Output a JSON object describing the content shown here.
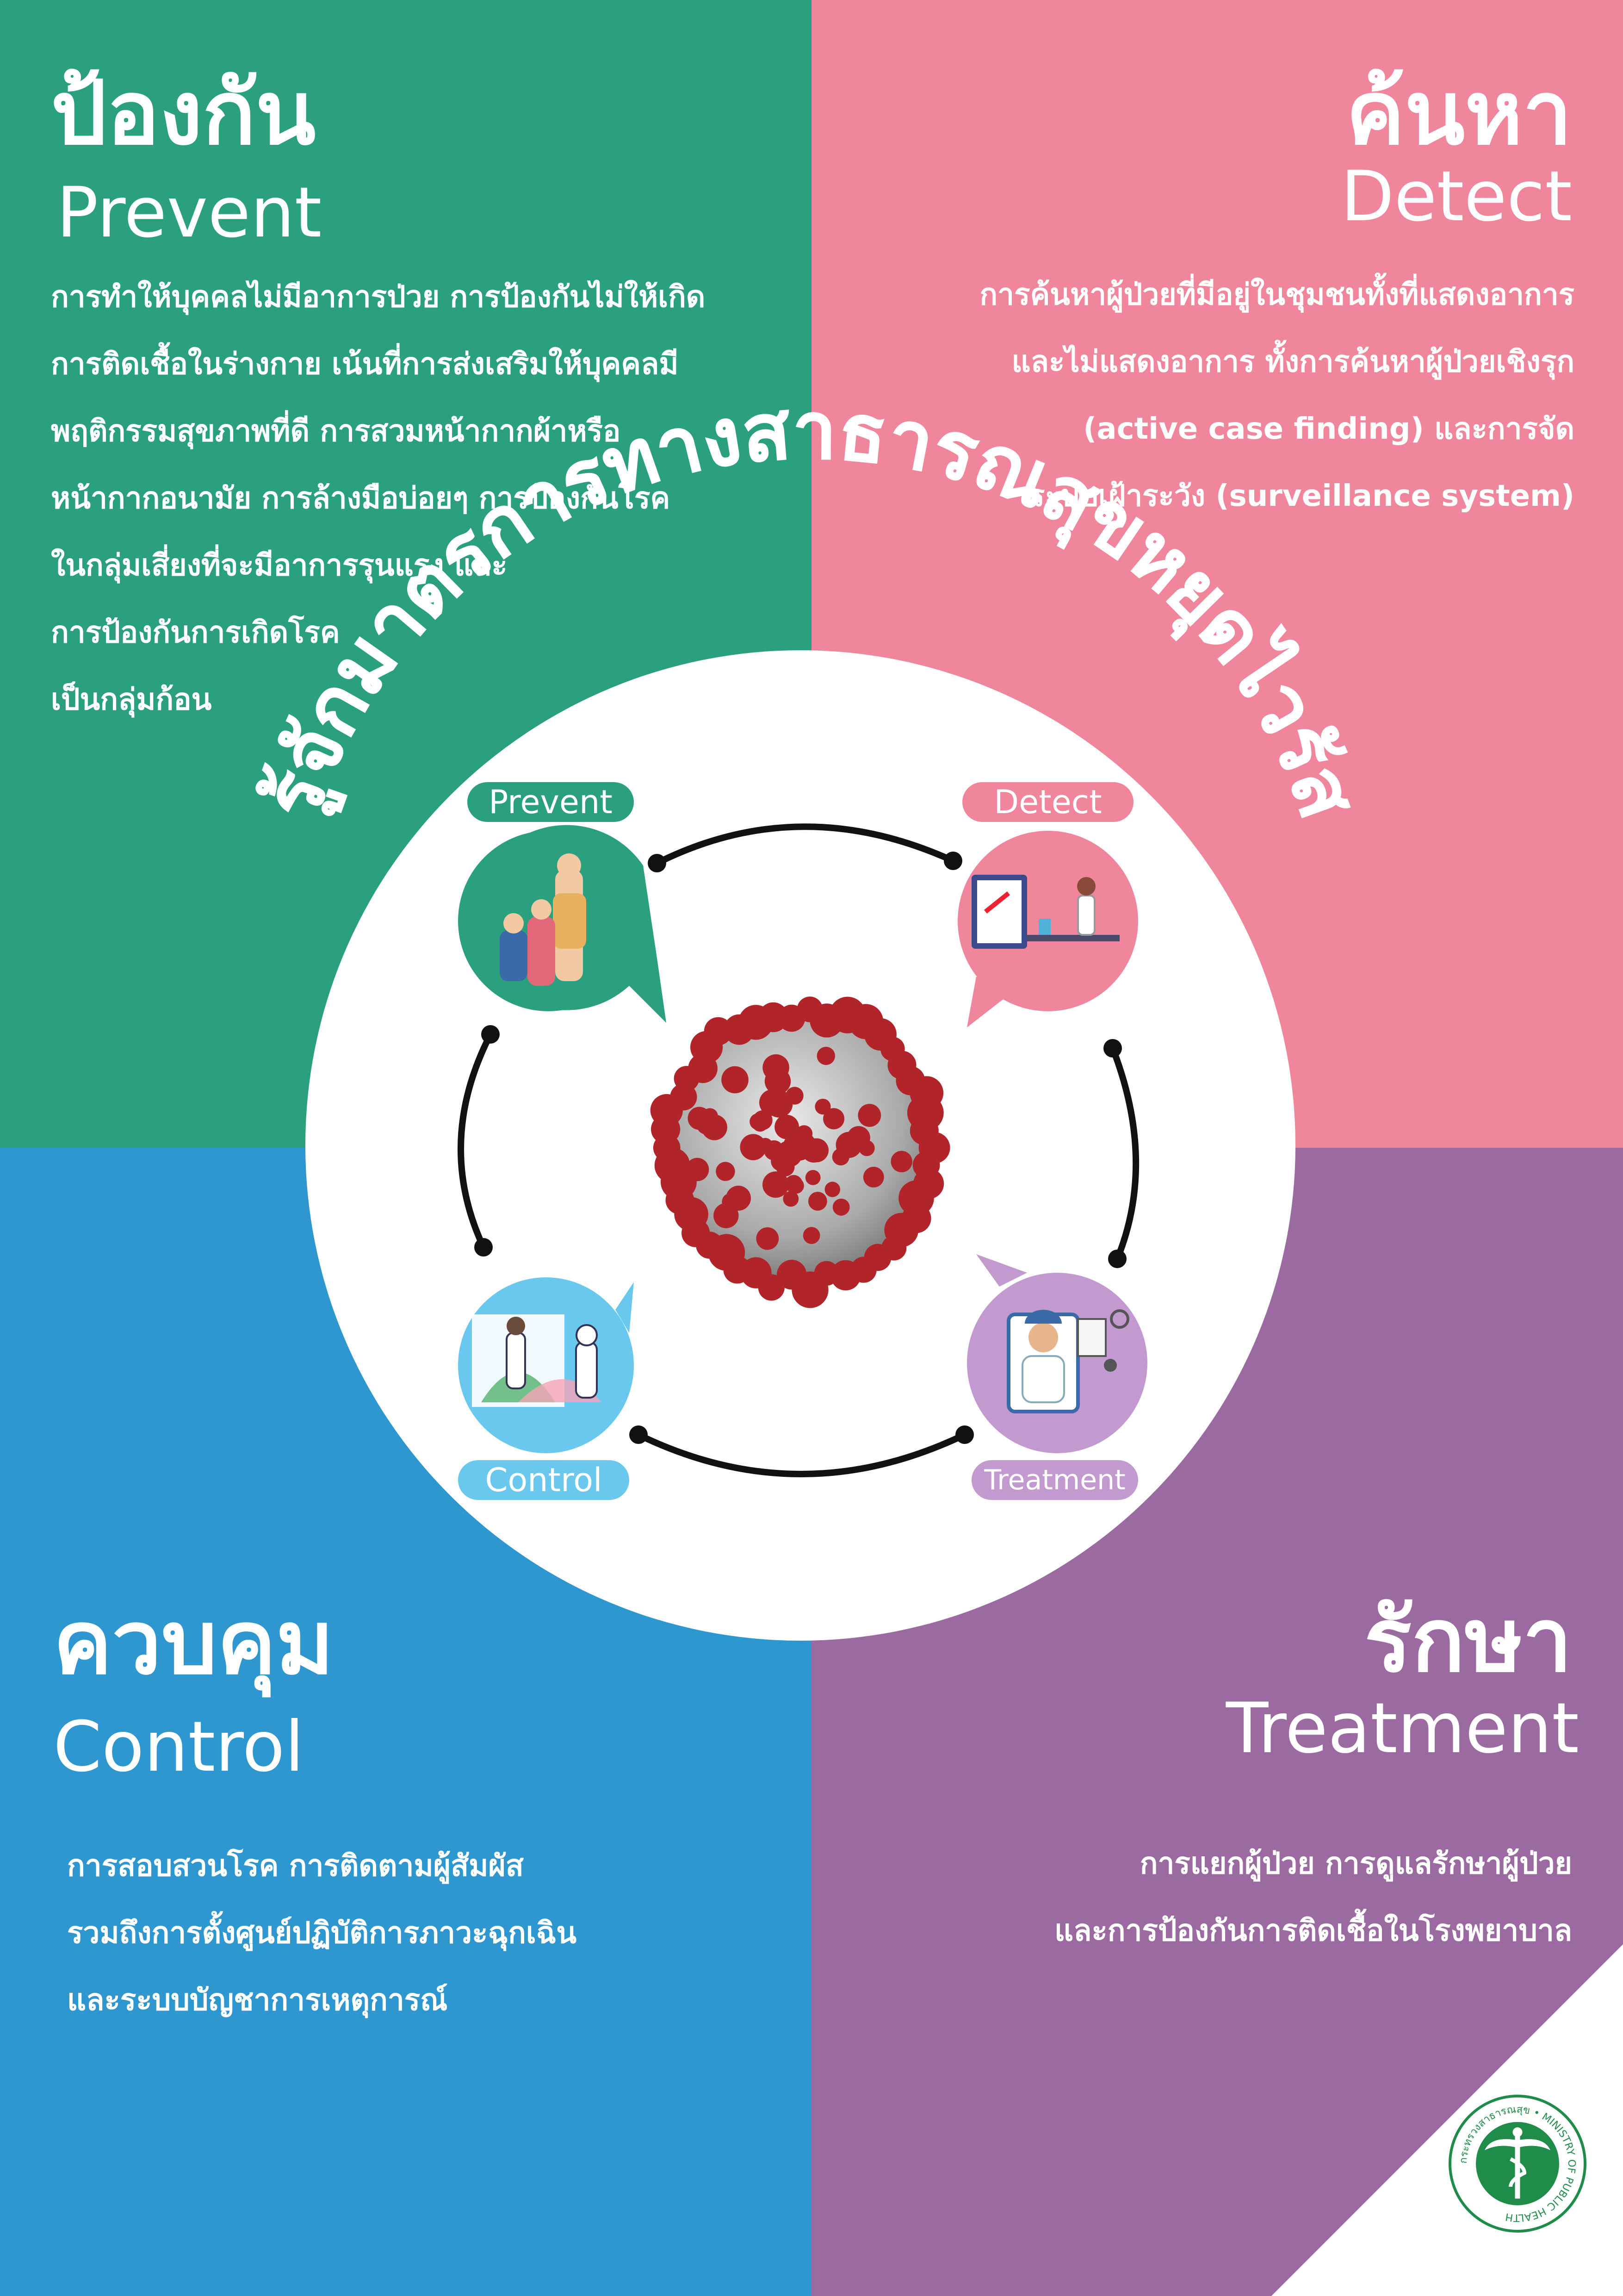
{
  "colors": {
    "prevent": "#2ba07f",
    "detect": "#f0869b",
    "control": "#2f97cf",
    "treatment": "#9a6aa0"
  },
  "prevent": {
    "title_th": "ป้องกัน",
    "title_en": "Prevent",
    "lines": [
      "การทำให้บุคคลไม่มีอาการป่วย การป้องกันไม่ให้เกิด",
      "การติดเชื้อในร่างกาย เน้นที่การส่งเสริมให้บุคคลมี",
      "พฤติกรรมสุขภาพที่ดี  การสวมหน้ากากผ้าหรือ",
      "หน้ากากอนามัย การล้างมือบ่อยๆ การป้องกันโรค",
      "ในกลุ่มเสี่ยงที่จะมีอาการรุนแรง และ",
      "การป้องกันการเกิดโรค",
      "เป็นกลุ่มก้อน"
    ],
    "tag": "Prevent"
  },
  "detect": {
    "title_th": "ค้นหา",
    "title_en": "Detect",
    "lines": [
      "การค้นหาผู้ป่วยที่มีอยู่ในชุมชนทั้งที่แสดงอาการ",
      "และไม่แสดงอาการ  ทั้งการค้นหาผู้ป่วยเชิงรุก",
      "(active case finding) และการจัด",
      "ระบบเฝ้าระวัง (surveillance system)"
    ],
    "tag": "Detect"
  },
  "control": {
    "title_th": "ควบคุม",
    "title_en": "Control",
    "lines": [
      "การสอบสวนโรค การติดตามผู้สัมผัส",
      "รวมถึงการตั้งศูนย์ปฏิบัติการภาวะฉุกเฉิน",
      "และระบบบัญชาการเหตุการณ์"
    ],
    "tag": "Control"
  },
  "treatment": {
    "title_th": "รักษา",
    "title_en": "Treatment",
    "lines": [
      "การแยกผู้ป่วย การดูแลรักษาผู้ป่วย",
      "และการป้องกันการติดเชื้อในโรงพยาบาล"
    ],
    "tag": "Treatment"
  },
  "arc_title": "รู้จักมาตรการทางสาธารณสุขหยุดไวรัส",
  "emblem": {
    "ring_text": "กระทรวงสาธารณสุข • MINISTRY OF PUBLIC HEALTH",
    "icon": "caduceus-icon"
  }
}
